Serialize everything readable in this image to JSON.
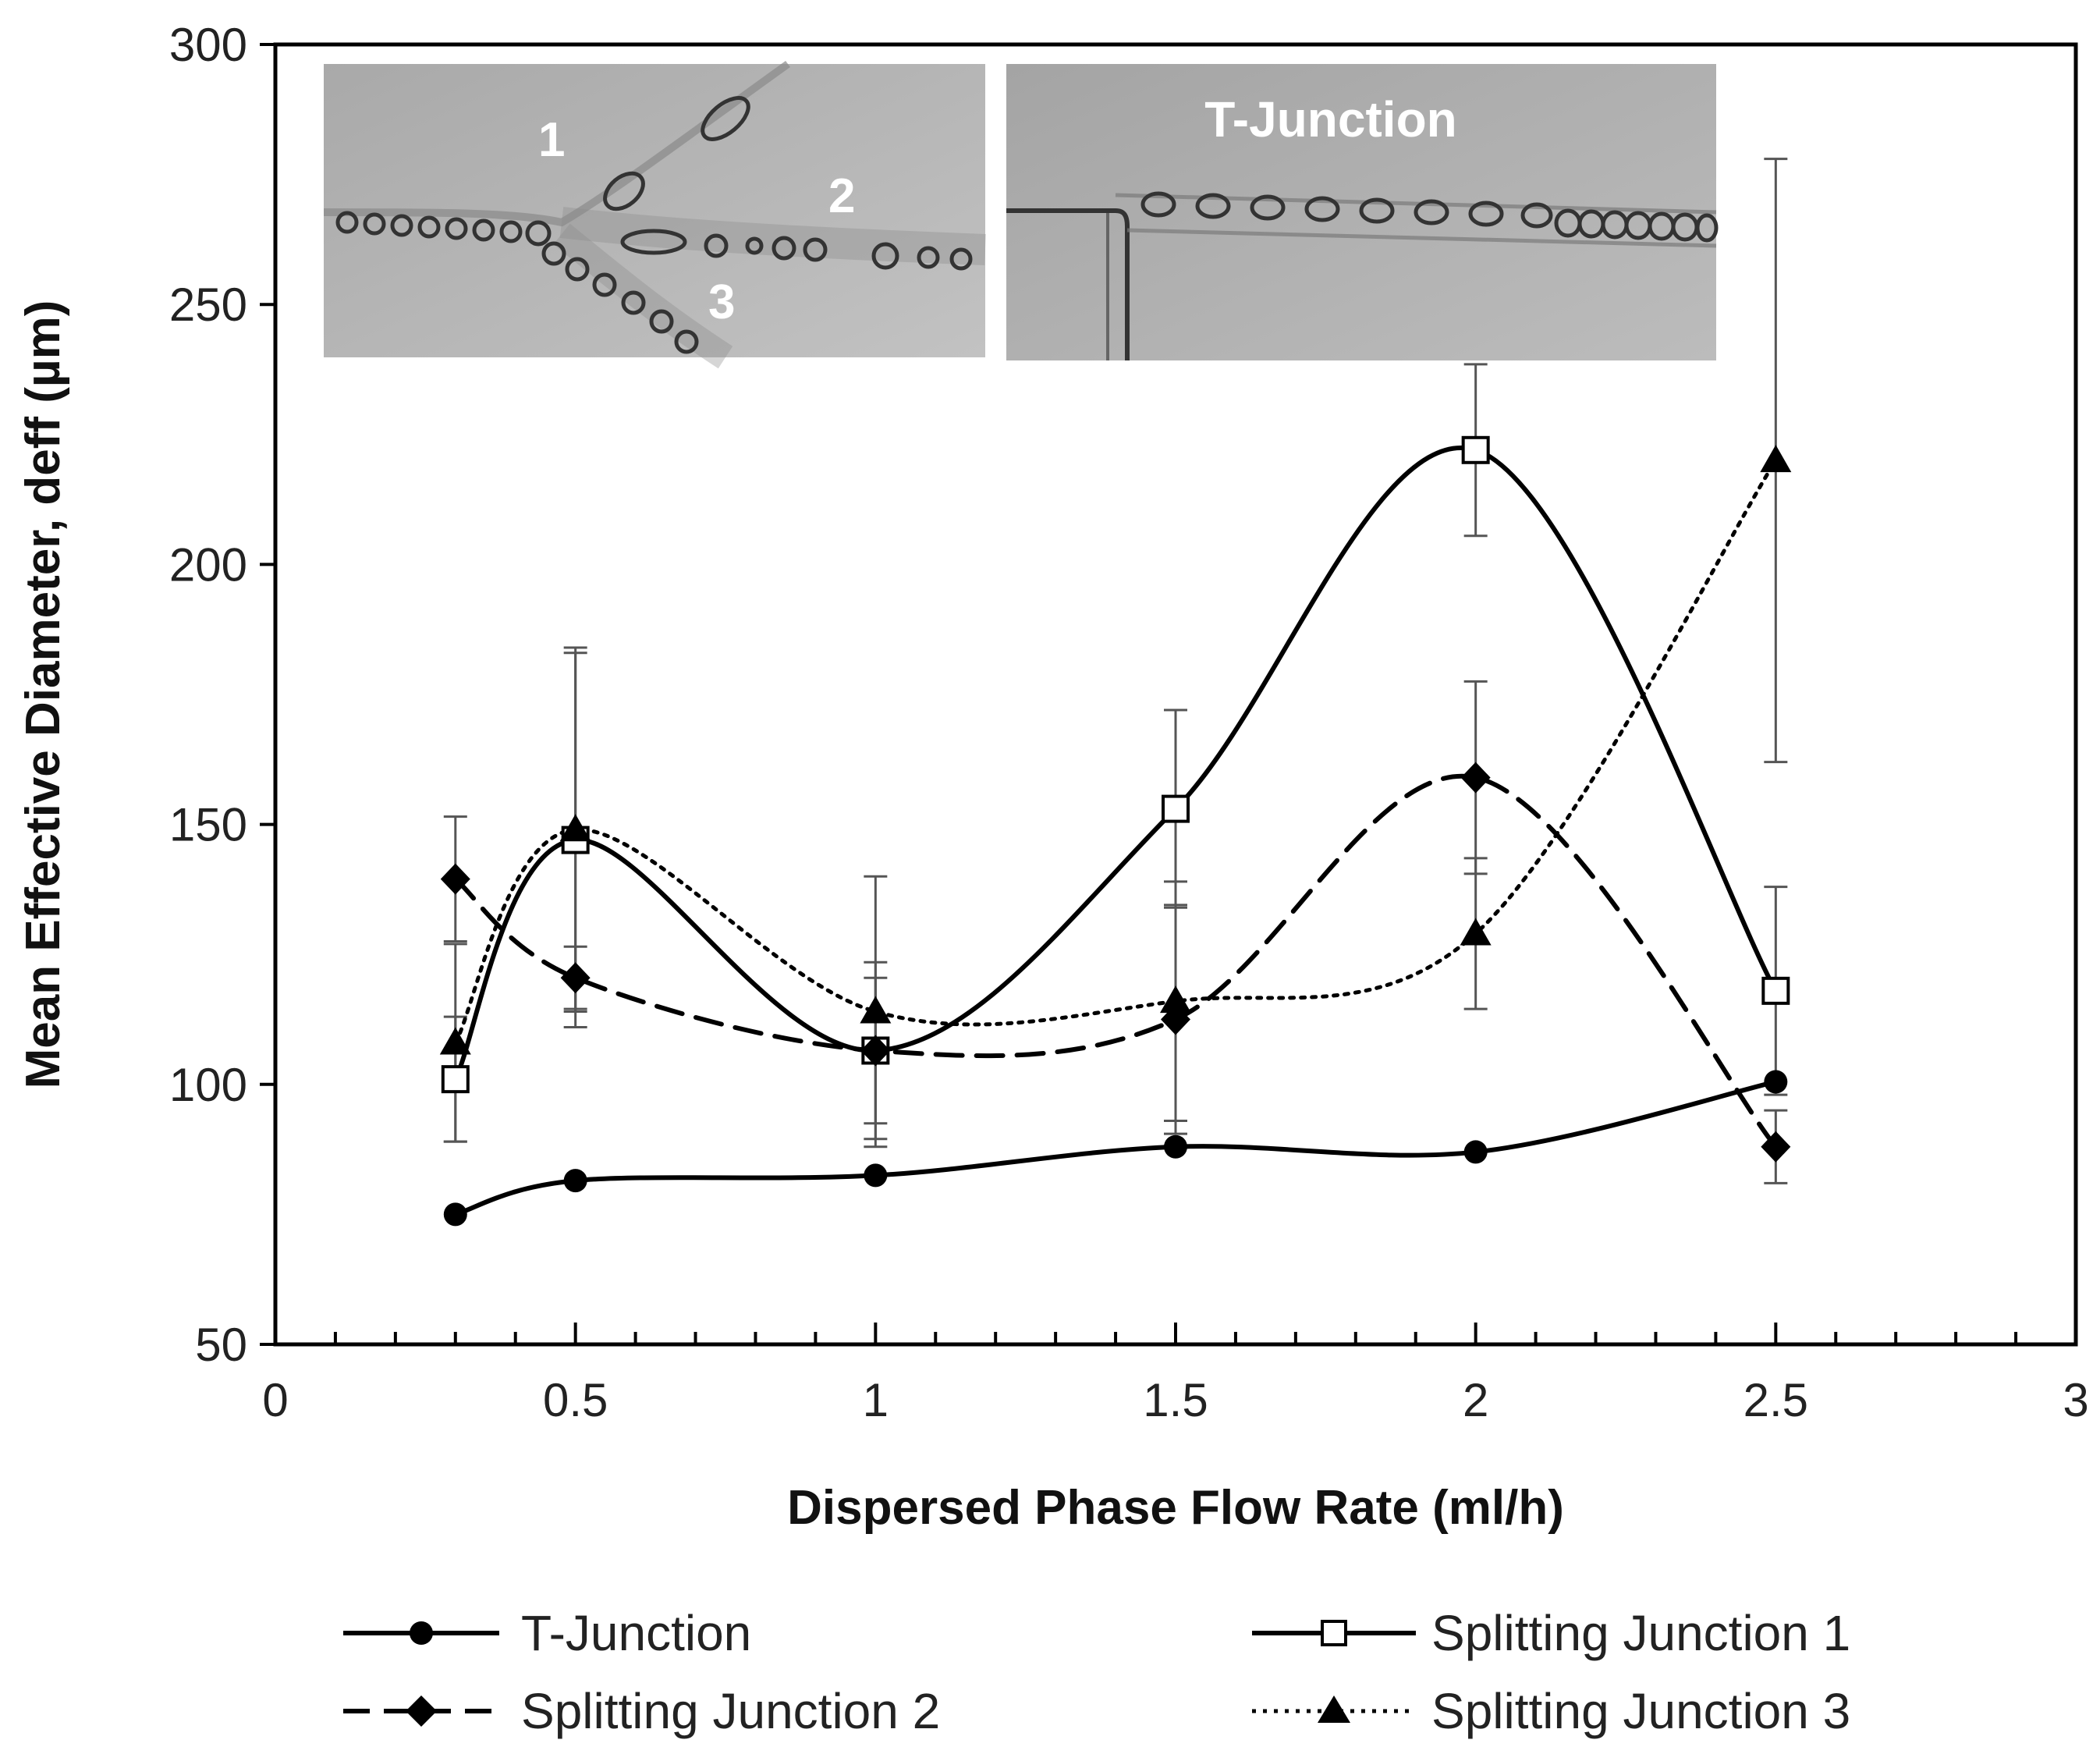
{
  "chart_data": {
    "type": "line",
    "title": "",
    "xlabel": "Dispersed Phase Flow Rate (ml/h)",
    "ylabel": "Mean Effective Diameter, deff  (µm)",
    "xlim": [
      0,
      3
    ],
    "ylim": [
      50,
      300
    ],
    "xticks": [
      0,
      0.5,
      1,
      1.5,
      2,
      2.5,
      3
    ],
    "xtick_labels": [
      "0",
      "0.5",
      "1",
      "1.5",
      "2",
      "2.5",
      "3"
    ],
    "yticks": [
      50,
      100,
      150,
      200,
      250,
      300
    ],
    "ytick_labels": [
      "50",
      "100",
      "150",
      "200",
      "250",
      "300"
    ],
    "x_minor_step": 0.1,
    "grid": false,
    "legend_position": "bottom",
    "series": [
      {
        "name": "T-Junction",
        "marker": "circle",
        "line": "solid",
        "x": [
          0.3,
          0.5,
          1,
          1.5,
          2,
          2.5
        ],
        "values": [
          75,
          81.5,
          82.5,
          88,
          87,
          100.5
        ],
        "err": [
          null,
          null,
          null,
          null,
          null,
          null
        ]
      },
      {
        "name": "Splitting Junction 1",
        "marker": "square-open",
        "line": "solid",
        "x": [
          0.3,
          0.5,
          1,
          1.5,
          2,
          2.5
        ],
        "values": [
          101,
          147,
          106.5,
          153,
          222,
          118
        ],
        "err": [
          12,
          36,
          17,
          19,
          16.5,
          20
        ]
      },
      {
        "name": "Splitting Junction 2",
        "marker": "diamond",
        "line": "dashed",
        "x": [
          0.3,
          0.5,
          1,
          1.5,
          2,
          2.5
        ],
        "values": [
          139.5,
          120.5,
          106.5,
          112.5,
          159,
          88
        ],
        "err": [
          12,
          6,
          14,
          22,
          18.5,
          7
        ]
      },
      {
        "name": "Splitting Junction 3",
        "marker": "triangle",
        "line": "dotted",
        "x": [
          0.3,
          0.5,
          1,
          1.5,
          2,
          2.5
        ],
        "values": [
          108,
          149,
          114,
          116,
          129,
          220
        ],
        "err": [
          19,
          35,
          26,
          23,
          14.5,
          58
        ]
      }
    ],
    "annotations": {
      "inset_left_labels": [
        "1",
        "2",
        "3"
      ],
      "inset_right_label": "T-Junction"
    }
  }
}
